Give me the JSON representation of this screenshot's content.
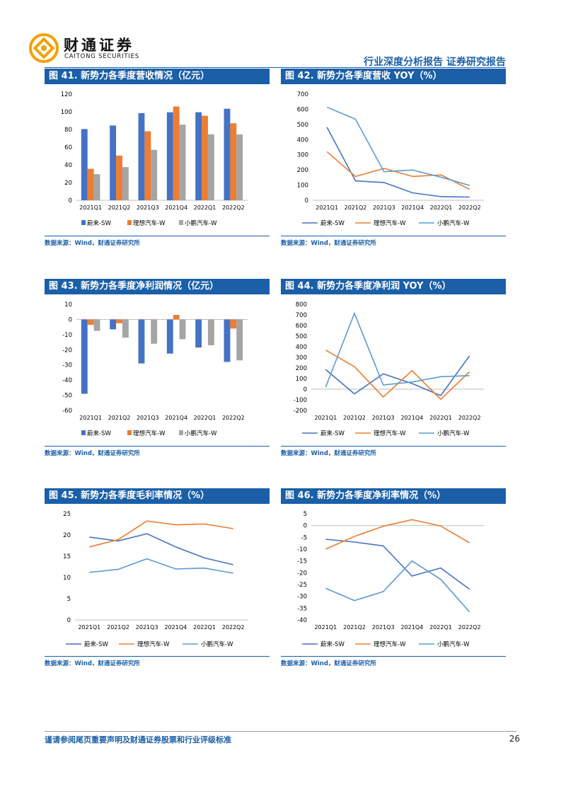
{
  "header": {
    "logo_cn": "财通证券",
    "logo_en": "CAITONG SECURITIES",
    "report_type": "行业深度分析报告  证券研究报告"
  },
  "colors": {
    "brand": "#1a5fa8",
    "nio": "#4472c4",
    "li": "#ed7d31",
    "xpeng": "#a5a5a5",
    "xpeng_line": "#5b9bd5"
  },
  "figures": [
    {
      "title": "图 41. 新势力各季度营收情况（亿元）",
      "source": "数据来源：Wind，财通证券研究所"
    },
    {
      "title": "图 42. 新势力各季度营收 YOY（%）",
      "source": "数据来源：Wind，财通证券研究所"
    },
    {
      "title": "图 43. 新势力各季度净利润情况（亿元）",
      "source": "数据来源：Wind，财通证券研究所"
    },
    {
      "title": "图 44. 新势力各季度净利润 YOY（%）",
      "source": "数据来源：Wind，财通证券研究所"
    },
    {
      "title": "图 45. 新势力各季度毛利率情况（%）",
      "source": "数据来源：Wind，财通证券研究所"
    },
    {
      "title": "图 46. 新势力各季度净利率情况（%）",
      "source": "数据来源：Wind，财通证券研究所"
    }
  ],
  "chart_data": [
    {
      "type": "bar",
      "categories": [
        "2021Q1",
        "2021Q2",
        "2021Q3",
        "2021Q4",
        "2022Q1",
        "2022Q2"
      ],
      "series": [
        {
          "name": "蔚来-SW",
          "values": [
            80.5,
            84.5,
            98.5,
            99.5,
            99.5,
            103.5
          ]
        },
        {
          "name": "理想汽车-W",
          "values": [
            35.5,
            50.5,
            78,
            106,
            95.5,
            87
          ]
        },
        {
          "name": "小鹏汽车-W",
          "values": [
            29.5,
            37.5,
            57,
            85.5,
            74.5,
            74.5
          ]
        }
      ],
      "ylim": [
        0,
        120
      ],
      "yticks": [
        0,
        20,
        40,
        60,
        80,
        100,
        120
      ],
      "grid": false,
      "legend": "bottom"
    },
    {
      "type": "line",
      "categories": [
        "2021Q1",
        "2021Q2",
        "2021Q3",
        "2021Q4",
        "2022Q1",
        "2022Q2"
      ],
      "series": [
        {
          "name": "蔚来-SW",
          "values": [
            482,
            128,
            117,
            49,
            24,
            21
          ]
        },
        {
          "name": "理想汽车-W",
          "values": [
            320,
            157,
            210,
            157,
            167,
            72
          ]
        },
        {
          "name": "小鹏汽车-W",
          "values": [
            614,
            535,
            188,
            200,
            152,
            98
          ]
        }
      ],
      "ylim": [
        0,
        700
      ],
      "yticks": [
        0,
        100,
        200,
        300,
        400,
        500,
        600,
        700
      ],
      "grid": false,
      "legend": "bottom"
    },
    {
      "type": "bar",
      "categories": [
        "2021Q1",
        "2021Q2",
        "2021Q3",
        "2021Q4",
        "2022Q1",
        "2022Q2"
      ],
      "series": [
        {
          "name": "蔚来-SW",
          "values": [
            -49,
            -6.5,
            -29,
            -22.5,
            -18.5,
            -28
          ]
        },
        {
          "name": "理想汽车-W",
          "values": [
            -3.5,
            -2.5,
            -0.2,
            3,
            -0.1,
            -6
          ]
        },
        {
          "name": "小鹏汽车-W",
          "values": [
            -7.5,
            -12,
            -16,
            -13,
            -17,
            -27
          ]
        }
      ],
      "ylim": [
        -60,
        10
      ],
      "yticks": [
        10,
        0,
        -10,
        -20,
        -30,
        -40,
        -50,
        -60
      ],
      "grid": false,
      "legend": "bottom"
    },
    {
      "type": "line",
      "categories": [
        "2021Q1",
        "2021Q2",
        "2021Q3",
        "2021Q4",
        "2022Q1",
        "2022Q2"
      ],
      "series": [
        {
          "name": "蔚来-SW",
          "values": [
            186,
            -44,
            145,
            54,
            -60,
            315
          ]
        },
        {
          "name": "理想汽车-W",
          "values": [
            368,
            213,
            -73,
            175,
            -95,
            165
          ]
        },
        {
          "name": "小鹏汽车-W",
          "values": [
            20,
            715,
            40,
            68,
            118,
            128
          ]
        }
      ],
      "ylim": [
        -200,
        800
      ],
      "yticks": [
        800,
        700,
        600,
        500,
        400,
        300,
        200,
        100,
        0,
        -100,
        -200
      ],
      "grid": false,
      "legend": "bottom"
    },
    {
      "type": "line",
      "categories": [
        "2021Q1",
        "2021Q2",
        "2021Q3",
        "2021Q4",
        "2022Q1",
        "2022Q2"
      ],
      "series": [
        {
          "name": "蔚来-SW",
          "values": [
            19.5,
            18.6,
            20.3,
            17.2,
            14.6,
            13.0
          ]
        },
        {
          "name": "理想汽车-W",
          "values": [
            17.2,
            18.9,
            23.3,
            22.4,
            22.6,
            21.5
          ]
        },
        {
          "name": "小鹏汽车-W",
          "values": [
            11.2,
            11.9,
            14.4,
            12.0,
            12.2,
            11.0
          ]
        }
      ],
      "ylim": [
        0,
        25
      ],
      "yticks": [
        25,
        20,
        15,
        10,
        5,
        0
      ],
      "grid": false,
      "legend": "bottom"
    },
    {
      "type": "line",
      "categories": [
        "2021Q1",
        "2021Q2",
        "2021Q3",
        "2021Q4",
        "2022Q1",
        "2022Q2"
      ],
      "series": [
        {
          "name": "蔚来-SW",
          "values": [
            -5.8,
            -7.0,
            -8.6,
            -21.4,
            -18.0,
            -27.0
          ]
        },
        {
          "name": "理想汽车-W",
          "values": [
            -10.0,
            -4.6,
            -0.3,
            2.5,
            -0.2,
            -7.3
          ]
        },
        {
          "name": "小鹏汽车-W",
          "values": [
            -26.6,
            -31.8,
            -28.0,
            -15.0,
            -22.8,
            -36.6
          ]
        }
      ],
      "ylim": [
        -40,
        5
      ],
      "yticks": [
        5,
        0,
        -5,
        -10,
        -15,
        -20,
        -25,
        -30,
        -35,
        -40
      ],
      "grid": false,
      "legend": "bottom"
    }
  ],
  "footer": {
    "note": "谨请参阅尾页重要声明及财通证券股票和行业评级标准",
    "page": "26"
  }
}
